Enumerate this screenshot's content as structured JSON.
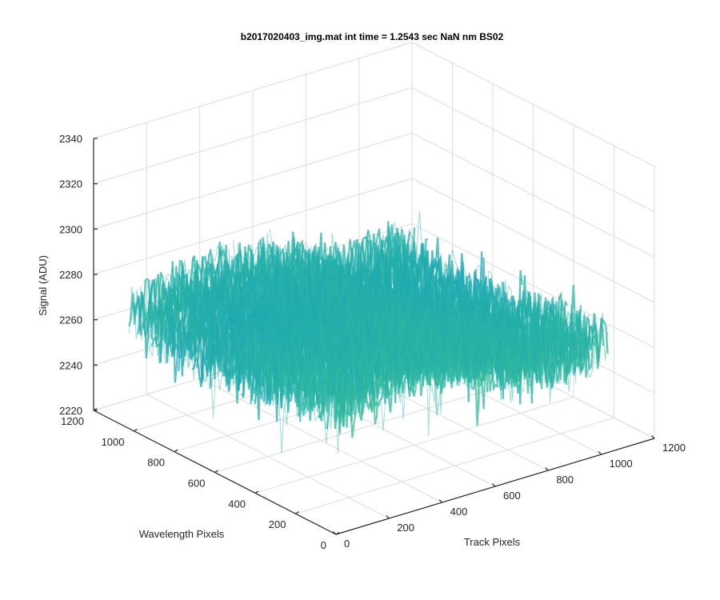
{
  "chart_data": {
    "type": "surface",
    "title": "b2017020403_img.mat int time = 1.2543 sec  NaN nm BS02",
    "xlabel": "Track Pixels",
    "ylabel": "Wavelength Pixels",
    "zlabel": "Signal (ADU)",
    "xlim": [
      0,
      1200
    ],
    "ylim": [
      0,
      1200
    ],
    "zlim": [
      2220,
      2340
    ],
    "xticks": [
      "0",
      "200",
      "400",
      "600",
      "800",
      "1000",
      "1200"
    ],
    "yticks": [
      "0",
      "200",
      "400",
      "600",
      "800",
      "1000",
      "1200"
    ],
    "zticks": [
      "2220",
      "2240",
      "2260",
      "2280",
      "2300",
      "2320",
      "2340"
    ],
    "grid": true,
    "colormap": "parula",
    "surface_extent": {
      "x": [
        0,
        1024
      ],
      "y": [
        0,
        1024
      ]
    },
    "surface_mean": 2272,
    "surface_noise_range": [
      2240,
      2320
    ],
    "colors": {
      "low": "#0a8fd0",
      "mid": "#2bb8a0",
      "high": "#e8c23c"
    }
  }
}
